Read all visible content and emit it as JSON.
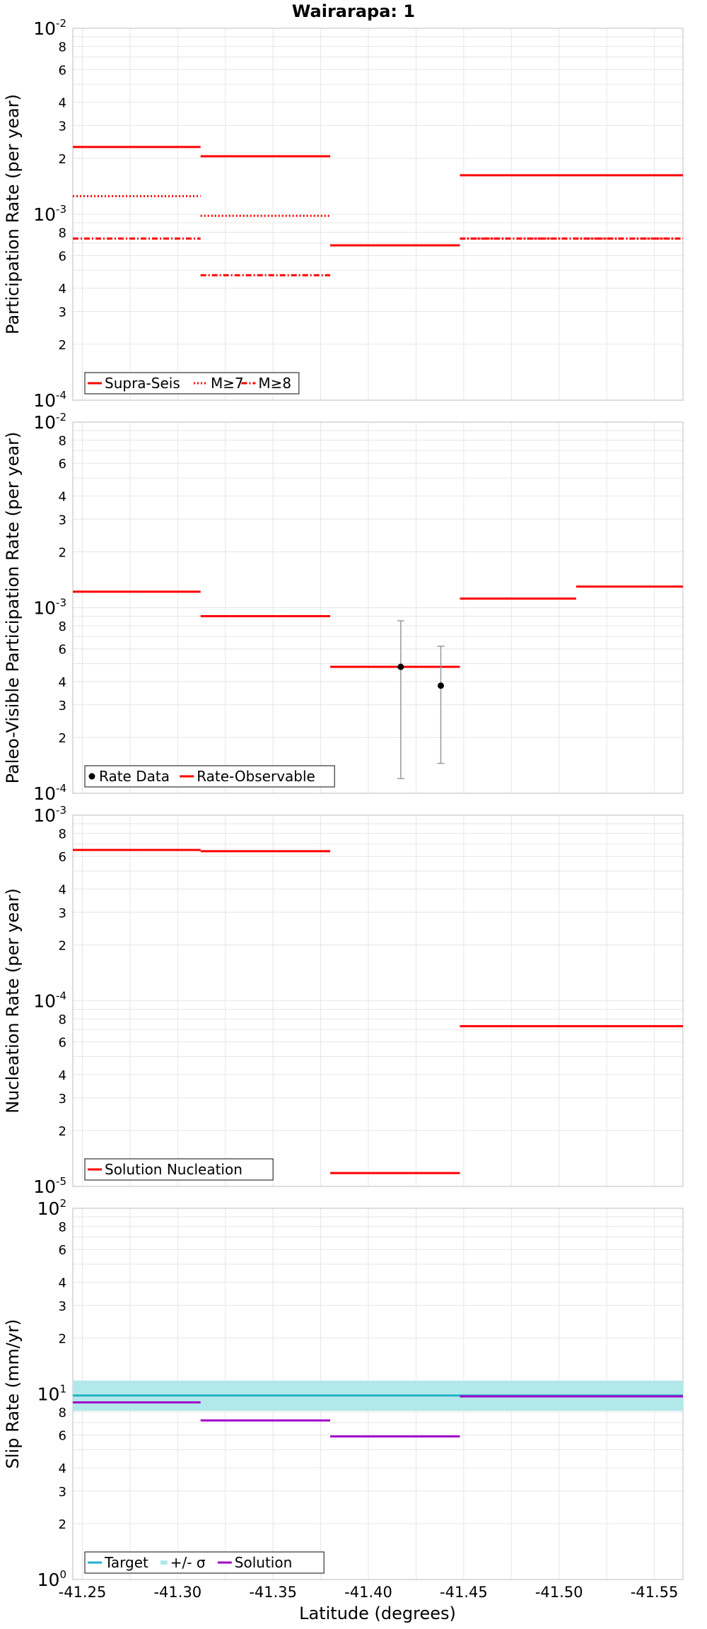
{
  "title": "Wairarapa: 1",
  "xlabel": "Latitude (degrees)",
  "x_ticks": [
    "-41.25",
    "-41.30",
    "-41.35",
    "-41.40",
    "-41.45",
    "-41.50",
    "-41.55"
  ],
  "colors": {
    "red": "#ff0000",
    "cyan": "#20b2c8",
    "band": "#b3e8ea",
    "purple": "#a000c8",
    "gray": "#999999",
    "black": "#000000"
  },
  "chart_data": [
    {
      "type": "line",
      "ylabel": "Participation Rate (per year)",
      "yscale": "log",
      "ylim": [
        0.0001,
        0.01
      ],
      "xlim": [
        -41.245,
        -41.565
      ],
      "grid": true,
      "legend_position": "bottom-left",
      "series": [
        {
          "name": "Supra-Seis",
          "style": "solid",
          "segments": [
            {
              "x": [
                -41.245,
                -41.312
              ],
              "y": 0.0023
            },
            {
              "x": [
                -41.312,
                -41.38
              ],
              "y": 0.00205
            },
            {
              "x": [
                -41.38,
                -41.448
              ],
              "y": 0.00068
            },
            {
              "x": [
                -41.448,
                -41.565
              ],
              "y": 0.00162
            }
          ]
        },
        {
          "name": "M≥7",
          "style": "dotted",
          "segments": [
            {
              "x": [
                -41.245,
                -41.312
              ],
              "y": 0.00125
            },
            {
              "x": [
                -41.312,
                -41.38
              ],
              "y": 0.00098
            },
            {
              "x": [
                -41.38,
                -41.448
              ],
              "y": 0.00068
            },
            {
              "x": [
                -41.448,
                -41.565
              ],
              "y": 0.00074
            }
          ]
        },
        {
          "name": "M≥8",
          "style": "dashdot",
          "segments": [
            {
              "x": [
                -41.245,
                -41.312
              ],
              "y": 0.00074
            },
            {
              "x": [
                -41.312,
                -41.38
              ],
              "y": 0.00047
            },
            {
              "x": [
                -41.38,
                -41.448
              ],
              "y": 0.00068
            },
            {
              "x": [
                -41.448,
                -41.565
              ],
              "y": 0.00074
            }
          ]
        }
      ]
    },
    {
      "type": "line",
      "ylabel": "Paleo-Visible Participation Rate (per year)",
      "yscale": "log",
      "ylim": [
        0.0001,
        0.01
      ],
      "xlim": [
        -41.245,
        -41.565
      ],
      "grid": true,
      "legend_position": "bottom-left",
      "points": {
        "name": "Rate Data",
        "data": [
          {
            "x": -41.417,
            "y": 0.00048,
            "low": 0.00012,
            "high": 0.00085
          },
          {
            "x": -41.438,
            "y": 0.00038,
            "low": 0.000145,
            "high": 0.00062
          }
        ]
      },
      "series": [
        {
          "name": "Rate-Observable",
          "style": "solid",
          "segments": [
            {
              "x": [
                -41.245,
                -41.312
              ],
              "y": 0.00122
            },
            {
              "x": [
                -41.312,
                -41.38
              ],
              "y": 0.0009
            },
            {
              "x": [
                -41.38,
                -41.448
              ],
              "y": 0.00048
            },
            {
              "x": [
                -41.448,
                -41.509
              ],
              "y": 0.00112
            },
            {
              "x": [
                -41.509,
                -41.565
              ],
              "y": 0.0013
            }
          ]
        }
      ]
    },
    {
      "type": "line",
      "ylabel": "Nucleation Rate (per year)",
      "yscale": "log",
      "ylim": [
        1e-05,
        0.001
      ],
      "xlim": [
        -41.245,
        -41.565
      ],
      "grid": true,
      "legend_position": "bottom-left",
      "series": [
        {
          "name": "Solution Nucleation",
          "style": "solid",
          "segments": [
            {
              "x": [
                -41.245,
                -41.312
              ],
              "y": 0.00065
            },
            {
              "x": [
                -41.312,
                -41.38
              ],
              "y": 0.00064
            },
            {
              "x": [
                -41.38,
                -41.448
              ],
              "y": 1.18e-05
            },
            {
              "x": [
                -41.448,
                -41.565
              ],
              "y": 7.3e-05
            }
          ]
        }
      ]
    },
    {
      "type": "line",
      "ylabel": "Slip Rate (mm/yr)",
      "yscale": "log",
      "ylim": [
        1,
        100
      ],
      "xlim": [
        -41.245,
        -41.565
      ],
      "grid": true,
      "legend_position": "bottom-left",
      "band": {
        "name": "+/- σ",
        "low": 8.1,
        "high": 11.8
      },
      "series": [
        {
          "name": "Target",
          "color": "cyan",
          "style": "solid",
          "segments": [
            {
              "x": [
                -41.245,
                -41.565
              ],
              "y": 9.8
            }
          ]
        },
        {
          "name": "Solution",
          "color": "purple",
          "style": "solid",
          "segments": [
            {
              "x": [
                -41.245,
                -41.312
              ],
              "y": 9.0
            },
            {
              "x": [
                -41.312,
                -41.38
              ],
              "y": 7.2
            },
            {
              "x": [
                -41.38,
                -41.448
              ],
              "y": 5.9
            },
            {
              "x": [
                -41.448,
                -41.565
              ],
              "y": 9.7
            }
          ]
        }
      ]
    }
  ]
}
